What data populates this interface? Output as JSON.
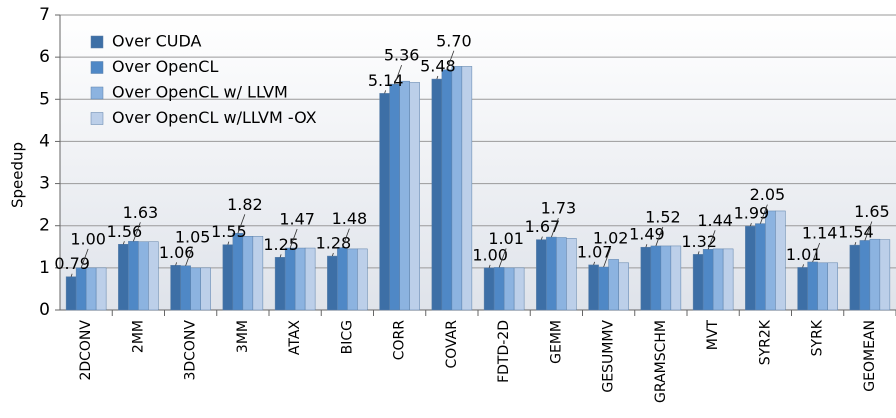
{
  "chart_data": {
    "type": "bar",
    "y_label": "Speedup",
    "categories": [
      "2DCONV",
      "2MM",
      "3DCONV",
      "3MM",
      "ATAX",
      "BICG",
      "CORR",
      "COVAR",
      "FDTD-2D",
      "GEMM",
      "GESUMMV",
      "GRAMSCHM",
      "MVT",
      "SYR2K",
      "SYRK",
      "GEOMEAN"
    ],
    "series": [
      {
        "name": "Over CUDA",
        "color": "#3d6fa6",
        "values": [
          0.79,
          1.56,
          1.06,
          1.55,
          1.25,
          1.28,
          5.14,
          5.48,
          1.0,
          1.67,
          1.07,
          1.49,
          1.32,
          1.99,
          1.01,
          1.54
        ],
        "value_labels": [
          "0.79",
          "1.56",
          "1.06",
          "1.55",
          "1.25",
          "1.28",
          "5.14",
          "5.48",
          "1.00",
          "1.67",
          "1.07",
          "1.49",
          "1.32",
          "1.99",
          "1.01",
          "1.54"
        ]
      },
      {
        "name": "Over OpenCL",
        "color": "#4f88c6",
        "values": [
          1.0,
          1.63,
          1.05,
          1.82,
          1.47,
          1.48,
          5.36,
          5.7,
          1.01,
          1.73,
          1.02,
          1.52,
          1.44,
          2.05,
          1.14,
          1.65
        ],
        "value_labels": [
          "1.00",
          "1.63",
          "1.05",
          "1.82",
          "1.47",
          "1.48",
          "5.36",
          "5.70",
          "1.01",
          "1.73",
          "1.02",
          "1.52",
          "1.44",
          "2.05",
          "1.14",
          "1.65"
        ]
      },
      {
        "name": "Over OpenCL w/ LLVM",
        "color": "#8cb3e0",
        "values": [
          1.0,
          1.62,
          1.0,
          1.75,
          1.47,
          1.45,
          5.43,
          5.78,
          1.0,
          1.72,
          1.2,
          1.52,
          1.45,
          2.35,
          1.12,
          1.68
        ]
      },
      {
        "name": "Over OpenCL w/LLVM -OX",
        "color": "#bccfe9",
        "values": [
          1.0,
          1.62,
          1.0,
          1.75,
          1.47,
          1.45,
          5.4,
          5.78,
          1.0,
          1.7,
          1.12,
          1.52,
          1.45,
          2.35,
          1.12,
          1.67
        ]
      }
    ],
    "ylim": [
      0,
      7
    ],
    "yticks": [
      0,
      1,
      2,
      3,
      4,
      5,
      6,
      7
    ],
    "grid": true,
    "legend": "top-left"
  }
}
